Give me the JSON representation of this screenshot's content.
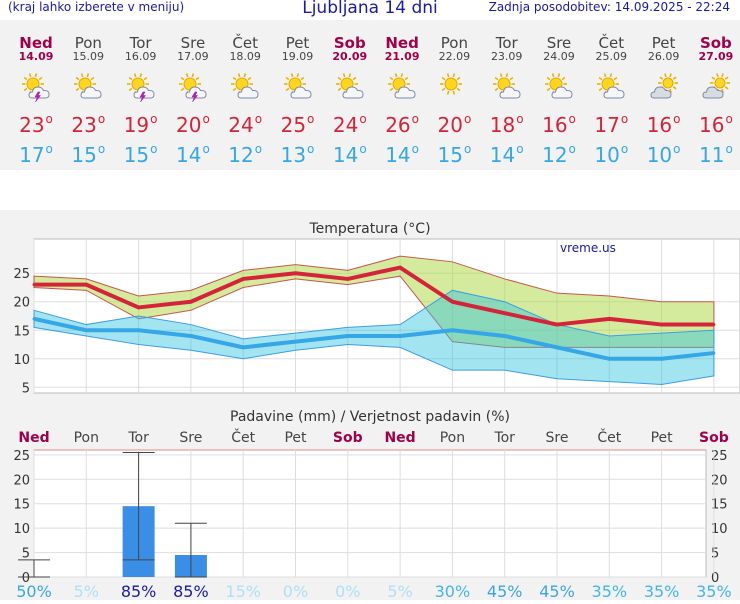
{
  "header": {
    "menu_hint": "(kraj lahko izberete v meniju)",
    "title": "Ljubljana 14 dni",
    "last_update": "Zadnja posodobitev: 14.09.2025 - 22:24"
  },
  "colors": {
    "max_temp": "#d4243a",
    "min_temp": "#35a6e6",
    "weekend": "#a0004a",
    "text": "#1a1aa6",
    "bar": "#3a8ee6"
  },
  "days": [
    {
      "name": "Ned",
      "date": "14.09",
      "icon": "sun-cloud-thunder-icon",
      "weekend": true,
      "max": "23",
      "min": "17"
    },
    {
      "name": "Pon",
      "date": "15.09",
      "icon": "sun-cloud-icon",
      "weekend": false,
      "max": "23",
      "min": "15"
    },
    {
      "name": "Tor",
      "date": "16.09",
      "icon": "sun-cloud-thunder-icon",
      "weekend": false,
      "max": "19",
      "min": "15"
    },
    {
      "name": "Sre",
      "date": "17.09",
      "icon": "sun-cloud-thunder-icon",
      "weekend": false,
      "max": "20",
      "min": "14"
    },
    {
      "name": "Čet",
      "date": "18.09",
      "icon": "sun-cloud-icon",
      "weekend": false,
      "max": "24",
      "min": "12"
    },
    {
      "name": "Pet",
      "date": "19.09",
      "icon": "sun-cloud-icon",
      "weekend": false,
      "max": "25",
      "min": "13"
    },
    {
      "name": "Sob",
      "date": "20.09",
      "icon": "sun-cloud-icon",
      "weekend": true,
      "max": "24",
      "min": "14"
    },
    {
      "name": "Ned",
      "date": "21.09",
      "icon": "sun-cloud-icon",
      "weekend": true,
      "max": "26",
      "min": "14"
    },
    {
      "name": "Pon",
      "date": "22.09",
      "icon": "sun-icon",
      "weekend": false,
      "max": "20",
      "min": "15"
    },
    {
      "name": "Tor",
      "date": "23.09",
      "icon": "sun-cloud-icon",
      "weekend": false,
      "max": "18",
      "min": "14"
    },
    {
      "name": "Sre",
      "date": "24.09",
      "icon": "sun-cloud-icon",
      "weekend": false,
      "max": "16",
      "min": "12"
    },
    {
      "name": "Čet",
      "date": "25.09",
      "icon": "sun-cloud-icon",
      "weekend": false,
      "max": "17",
      "min": "10"
    },
    {
      "name": "Pet",
      "date": "26.09",
      "icon": "cloud-sun-icon",
      "weekend": false,
      "max": "16",
      "min": "10"
    },
    {
      "name": "Sob",
      "date": "27.09",
      "icon": "cloud-sun-icon",
      "weekend": true,
      "max": "16",
      "min": "11"
    }
  ],
  "chart_data": [
    {
      "type": "line",
      "title": "Temperatura (°C)",
      "watermark": "vreme.us",
      "ylim": [
        4,
        31
      ],
      "yticks": [
        5,
        10,
        15,
        20,
        25
      ],
      "grid": true,
      "x": [
        0,
        1,
        2,
        3,
        4,
        5,
        6,
        7,
        8,
        9,
        10,
        11,
        12,
        13
      ],
      "series": [
        {
          "role": "max",
          "values": [
            23,
            23,
            19,
            20,
            24,
            25,
            24,
            26,
            20,
            18,
            16,
            17,
            16,
            16
          ]
        },
        {
          "role": "min",
          "values": [
            17,
            15,
            15,
            14,
            12,
            13,
            14,
            14,
            15,
            14,
            12,
            10,
            10,
            11
          ]
        },
        {
          "role": "max-range-high",
          "values": [
            24.5,
            24,
            21,
            22,
            25.5,
            26.5,
            25.5,
            28,
            27,
            24,
            21.5,
            21,
            20,
            20
          ]
        },
        {
          "role": "max-range-low",
          "values": [
            22.5,
            22,
            17,
            18.5,
            22.5,
            24,
            23,
            24.5,
            13,
            12,
            12,
            12,
            12,
            12
          ]
        },
        {
          "role": "min-range-high",
          "values": [
            18.5,
            16,
            17.5,
            16,
            13.5,
            14.5,
            15.5,
            16,
            22,
            20,
            16,
            14,
            14.5,
            15
          ]
        },
        {
          "role": "min-range-low",
          "values": [
            15.5,
            14,
            12.5,
            11.5,
            10,
            11.5,
            12.5,
            12,
            8,
            8,
            6.5,
            6,
            5.5,
            7
          ]
        }
      ]
    },
    {
      "type": "bar",
      "title": "Padavine (mm) / Verjetnost padavin (%)",
      "categories": [
        "Ned",
        "Pon",
        "Tor",
        "Sre",
        "Čet",
        "Pet",
        "Sob",
        "Ned",
        "Pon",
        "Tor",
        "Sre",
        "Čet",
        "Pet",
        "Sob"
      ],
      "weekend": [
        true,
        false,
        false,
        false,
        false,
        false,
        true,
        true,
        false,
        false,
        false,
        false,
        false,
        true
      ],
      "values": [
        0,
        0,
        14.5,
        4.5,
        0,
        0,
        0,
        0,
        0,
        0,
        0,
        0,
        0,
        0
      ],
      "range_low": [
        0,
        0,
        3.5,
        0,
        0,
        0,
        0,
        0,
        0,
        0,
        0,
        0,
        0,
        0
      ],
      "range_high": [
        3.5,
        0,
        25.5,
        11,
        0,
        0,
        0,
        0,
        0,
        0,
        0,
        0,
        0,
        0
      ],
      "ylim": [
        0,
        26
      ],
      "yticks": [
        0,
        5,
        10,
        15,
        20,
        25
      ],
      "probability": [
        "50%",
        "5%",
        "85%",
        "85%",
        "15%",
        "0%",
        "0%",
        "5%",
        "30%",
        "45%",
        "45%",
        "35%",
        "35%",
        "35%"
      ]
    }
  ]
}
